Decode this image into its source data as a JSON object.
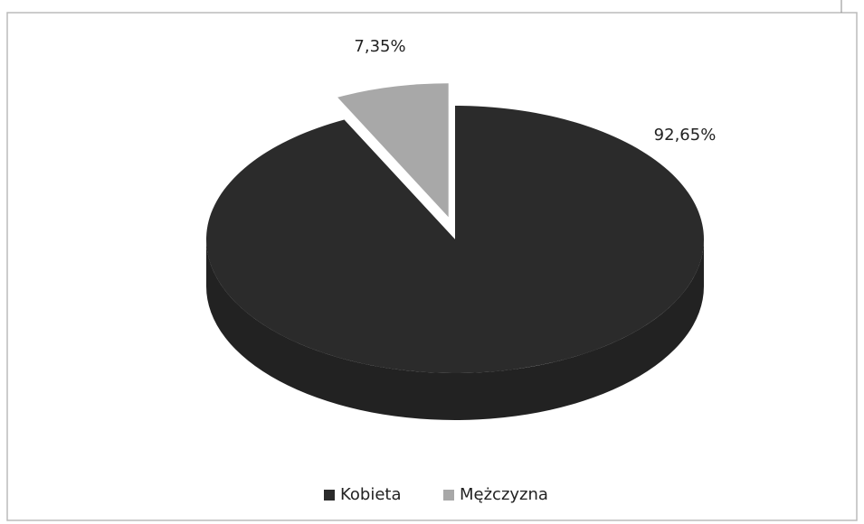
{
  "chart_data": {
    "type": "pie",
    "categories": [
      "Kobieta",
      "Mężczyzna"
    ],
    "values": [
      92.65,
      7.35
    ],
    "value_labels": [
      "92,65%",
      "7,35%"
    ],
    "colors": [
      "#2b2b2b",
      "#a8a8a8"
    ],
    "legend": "bottom"
  }
}
